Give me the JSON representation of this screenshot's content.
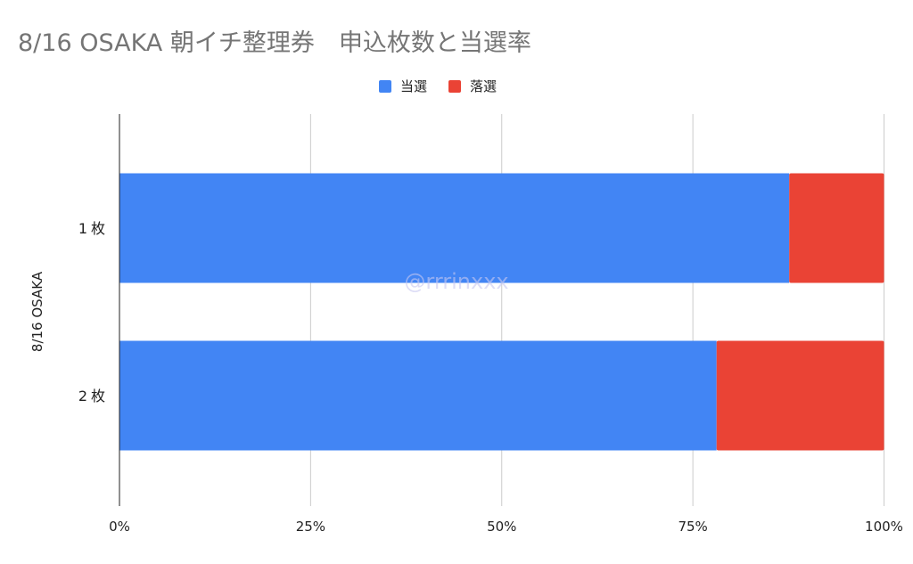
{
  "chart_data": {
    "type": "bar",
    "orientation": "horizontal",
    "stacked": "percent",
    "title": "8/16 OSAKA 朝イチ整理券　申込枚数と当選率",
    "ylabel": "8/16 OSAKA",
    "xlabel": "",
    "categories": [
      "1枚",
      "2枚"
    ],
    "series": [
      {
        "name": "当選",
        "color": "#4285f4",
        "values": [
          87.6,
          78.1
        ]
      },
      {
        "name": "落選",
        "color": "#ea4335",
        "values": [
          12.4,
          21.9
        ]
      }
    ],
    "xlim": [
      0,
      100
    ],
    "xticks": [
      "0%",
      "25%",
      "50%",
      "75%",
      "100%"
    ],
    "grid": true,
    "legend": "top",
    "watermark": "@rrrinxxx"
  }
}
